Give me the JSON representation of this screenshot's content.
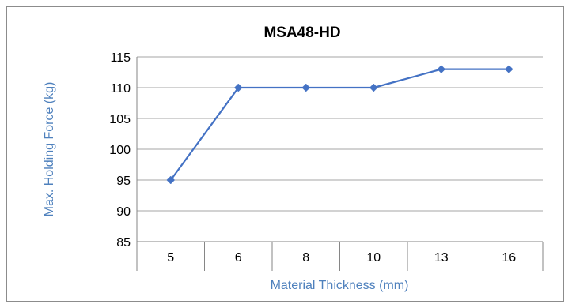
{
  "chart_data": {
    "type": "line",
    "title": "MSA48-HD",
    "xlabel": "Material Thickness (mm)",
    "ylabel": "Max. Holding Force (kg)",
    "categories": [
      "5",
      "6",
      "8",
      "10",
      "13",
      "16"
    ],
    "series": [
      {
        "values": [
          95,
          110,
          110,
          110,
          113,
          113
        ]
      }
    ],
    "ylim": [
      85,
      115
    ],
    "yticks": [
      85,
      90,
      95,
      100,
      105,
      110,
      115
    ],
    "grid": true,
    "legend": "none",
    "colors": {
      "series": "#4472c4",
      "axis_title": "#4f81bd",
      "grid": "#a6a6a6",
      "axis": "#868686"
    }
  }
}
